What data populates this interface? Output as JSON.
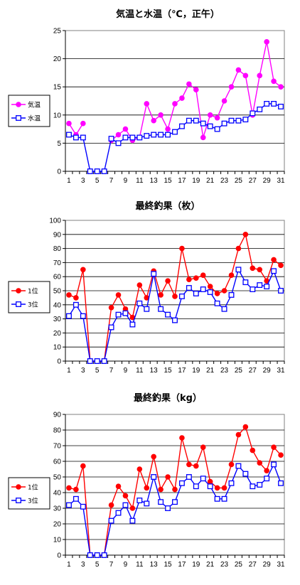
{
  "chart_data": [
    {
      "type": "line",
      "title": "気温と水温（℃，正午）",
      "xlabel": "",
      "ylabel": "",
      "ylim": [
        0,
        25
      ],
      "yticks": [
        0,
        5,
        10,
        15,
        20,
        25
      ],
      "x": [
        1,
        2,
        3,
        4,
        5,
        6,
        7,
        8,
        9,
        10,
        11,
        12,
        13,
        14,
        15,
        16,
        17,
        18,
        19,
        20,
        21,
        22,
        23,
        24,
        25,
        26,
        27,
        28,
        29,
        30,
        31
      ],
      "xticks": [
        1,
        3,
        5,
        7,
        9,
        11,
        13,
        15,
        17,
        19,
        21,
        23,
        25,
        27,
        29,
        31
      ],
      "legend": "left",
      "grid": "horizontal",
      "series": [
        {
          "name": "気温",
          "color": "#ff00ff",
          "marker": "filled-circle",
          "values": [
            8.5,
            6.5,
            8.5,
            null,
            null,
            null,
            5.5,
            6.5,
            7.5,
            5.5,
            6.0,
            12.0,
            9.0,
            10.0,
            7.5,
            12.0,
            13.0,
            15.5,
            14.5,
            6.0,
            10.0,
            9.5,
            12.5,
            15.0,
            18.0,
            17.0,
            10.0,
            17.0,
            23.0,
            16.0,
            15.0
          ]
        },
        {
          "name": "水温",
          "color": "#0000ff",
          "marker": "open-square",
          "values": [
            6.5,
            6.0,
            6.0,
            0,
            0,
            0,
            5.8,
            5.0,
            6.0,
            6.0,
            6.0,
            6.3,
            6.5,
            6.5,
            6.5,
            7.0,
            8.0,
            9.0,
            9.0,
            8.5,
            8.0,
            7.5,
            8.5,
            9.0,
            9.0,
            9.2,
            10.3,
            11.0,
            12.0,
            12.0,
            11.5
          ]
        }
      ]
    },
    {
      "type": "line",
      "title": "最終釣果（枚）",
      "xlabel": "",
      "ylabel": "",
      "ylim": [
        0,
        100
      ],
      "yticks": [
        0,
        10,
        20,
        30,
        40,
        50,
        60,
        70,
        80,
        90,
        100
      ],
      "x": [
        1,
        2,
        3,
        4,
        5,
        6,
        7,
        8,
        9,
        10,
        11,
        12,
        13,
        14,
        15,
        16,
        17,
        18,
        19,
        20,
        21,
        22,
        23,
        24,
        25,
        26,
        27,
        28,
        29,
        30,
        31
      ],
      "xticks": [
        1,
        3,
        5,
        7,
        9,
        11,
        13,
        15,
        17,
        19,
        21,
        23,
        25,
        27,
        29,
        31
      ],
      "legend": "left",
      "grid": "horizontal",
      "series": [
        {
          "name": "1位",
          "color": "#ff0000",
          "marker": "filled-circle",
          "values": [
            47,
            45,
            65,
            0,
            0,
            0,
            38,
            47,
            37,
            31,
            54,
            45,
            64,
            47,
            57,
            46,
            80,
            58,
            59,
            61,
            53,
            48,
            50,
            61,
            80,
            90,
            66,
            65,
            57,
            72,
            68
          ]
        },
        {
          "name": "3位",
          "color": "#0000ff",
          "marker": "open-square",
          "values": [
            32,
            40,
            32,
            0,
            0,
            0,
            24,
            33,
            34,
            26,
            41,
            37,
            62,
            37,
            33,
            29,
            46,
            52,
            48,
            51,
            49,
            41,
            37,
            47,
            65,
            56,
            51,
            54,
            53,
            64,
            50
          ]
        }
      ]
    },
    {
      "type": "line",
      "title": "最終釣果（kg）",
      "xlabel": "",
      "ylabel": "",
      "ylim": [
        0,
        90
      ],
      "yticks": [
        0,
        10,
        20,
        30,
        40,
        50,
        60,
        70,
        80,
        90
      ],
      "x": [
        1,
        2,
        3,
        4,
        5,
        6,
        7,
        8,
        9,
        10,
        11,
        12,
        13,
        14,
        15,
        16,
        17,
        18,
        19,
        20,
        21,
        22,
        23,
        24,
        25,
        26,
        27,
        28,
        29,
        30,
        31
      ],
      "xticks": [
        1,
        3,
        5,
        7,
        9,
        11,
        13,
        15,
        17,
        19,
        21,
        23,
        25,
        27,
        29,
        31
      ],
      "legend": "left",
      "grid": "horizontal",
      "series": [
        {
          "name": "1位",
          "color": "#ff0000",
          "marker": "filled-circle",
          "values": [
            43,
            42,
            57,
            0,
            0,
            0,
            32,
            44,
            38,
            30,
            55,
            43,
            63,
            42,
            50,
            42,
            75,
            58,
            57,
            69,
            47,
            43,
            43,
            58,
            77,
            82,
            67,
            59,
            54,
            69,
            64
          ]
        },
        {
          "name": "3位",
          "color": "#0000ff",
          "marker": "open-square",
          "values": [
            32,
            36,
            31,
            0,
            0,
            0,
            22,
            27,
            32,
            22,
            35,
            33,
            50,
            34,
            30,
            34,
            46,
            50,
            44,
            49,
            44,
            36,
            36,
            46,
            57,
            52,
            44,
            45,
            49,
            58,
            46
          ]
        }
      ]
    }
  ]
}
